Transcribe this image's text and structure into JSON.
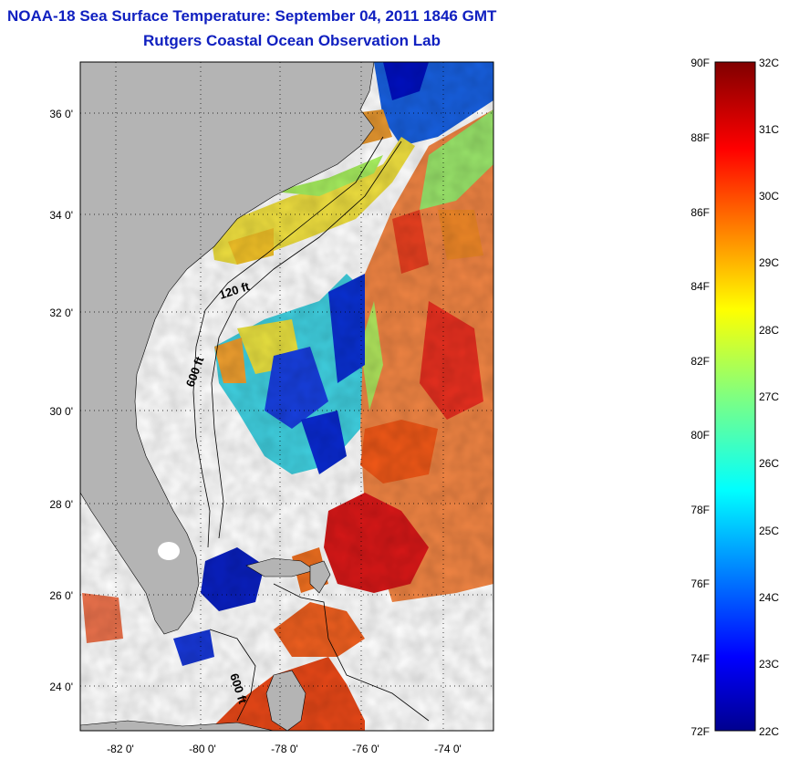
{
  "header": {
    "title": "NOAA-18 Sea Surface Temperature:  September 04, 2011 1846 GMT",
    "subtitle": "Rutgers Coastal Ocean Observation Lab"
  },
  "map": {
    "lat_ticks": [
      "24 0'",
      "26 0'",
      "28 0'",
      "30 0'",
      "32 0'",
      "34 0'",
      "36 0'"
    ],
    "lon_ticks": [
      "-82 0'",
      "-80 0'",
      "-78 0'",
      "-76 0'",
      "-74 0'"
    ],
    "contour_labels": [
      "120 ft",
      "600 ft",
      "600 ft"
    ],
    "land_color": "#b4b4b4",
    "cloud_color": "#ffffff"
  },
  "colorbar": {
    "fahrenheit_labels": [
      "90F",
      "88F",
      "86F",
      "84F",
      "82F",
      "80F",
      "78F",
      "76F",
      "74F",
      "72F"
    ],
    "celsius_labels": [
      "32C",
      "31C",
      "30C",
      "29C",
      "28C",
      "27C",
      "26C",
      "25C",
      "24C",
      "23C",
      "22C"
    ],
    "colormap": "jet",
    "range_c": [
      22,
      32
    ]
  }
}
